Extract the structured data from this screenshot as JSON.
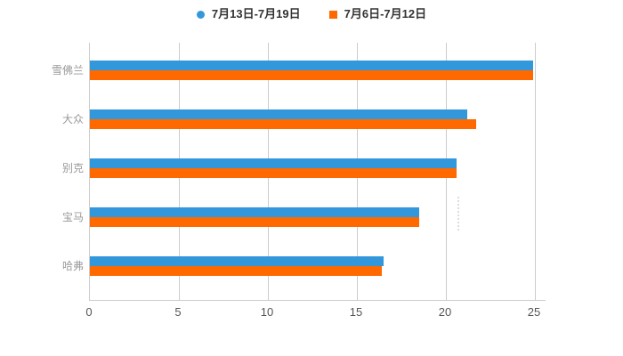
{
  "chart_data": {
    "type": "bar",
    "orientation": "horizontal",
    "title": "",
    "xlabel": "",
    "ylabel": "",
    "categories": [
      "雪佛兰",
      "大众",
      "别克",
      "宝马",
      "哈弗"
    ],
    "series": [
      {
        "name": "7月13日-7月19日",
        "color": "#3398db",
        "marker": "circle",
        "values": [
          24.9,
          21.2,
          20.6,
          18.5,
          16.5
        ]
      },
      {
        "name": "7月6日-7月12日",
        "color": "#ff6900",
        "marker": "square",
        "values": [
          24.9,
          21.7,
          20.6,
          18.5,
          16.4
        ]
      }
    ],
    "xlim": [
      0,
      25
    ],
    "xticks": [
      "0",
      "5",
      "10",
      "15",
      "20",
      "25"
    ],
    "grid": "vertical-gridlines",
    "legend_position": "top-center",
    "colors": {
      "background": "#ffffff",
      "grid_line": "#cccccc",
      "axis_line": "#cccccc",
      "tick_label": "#555555",
      "category_label": "#999999",
      "legend_text": "#333333"
    }
  }
}
